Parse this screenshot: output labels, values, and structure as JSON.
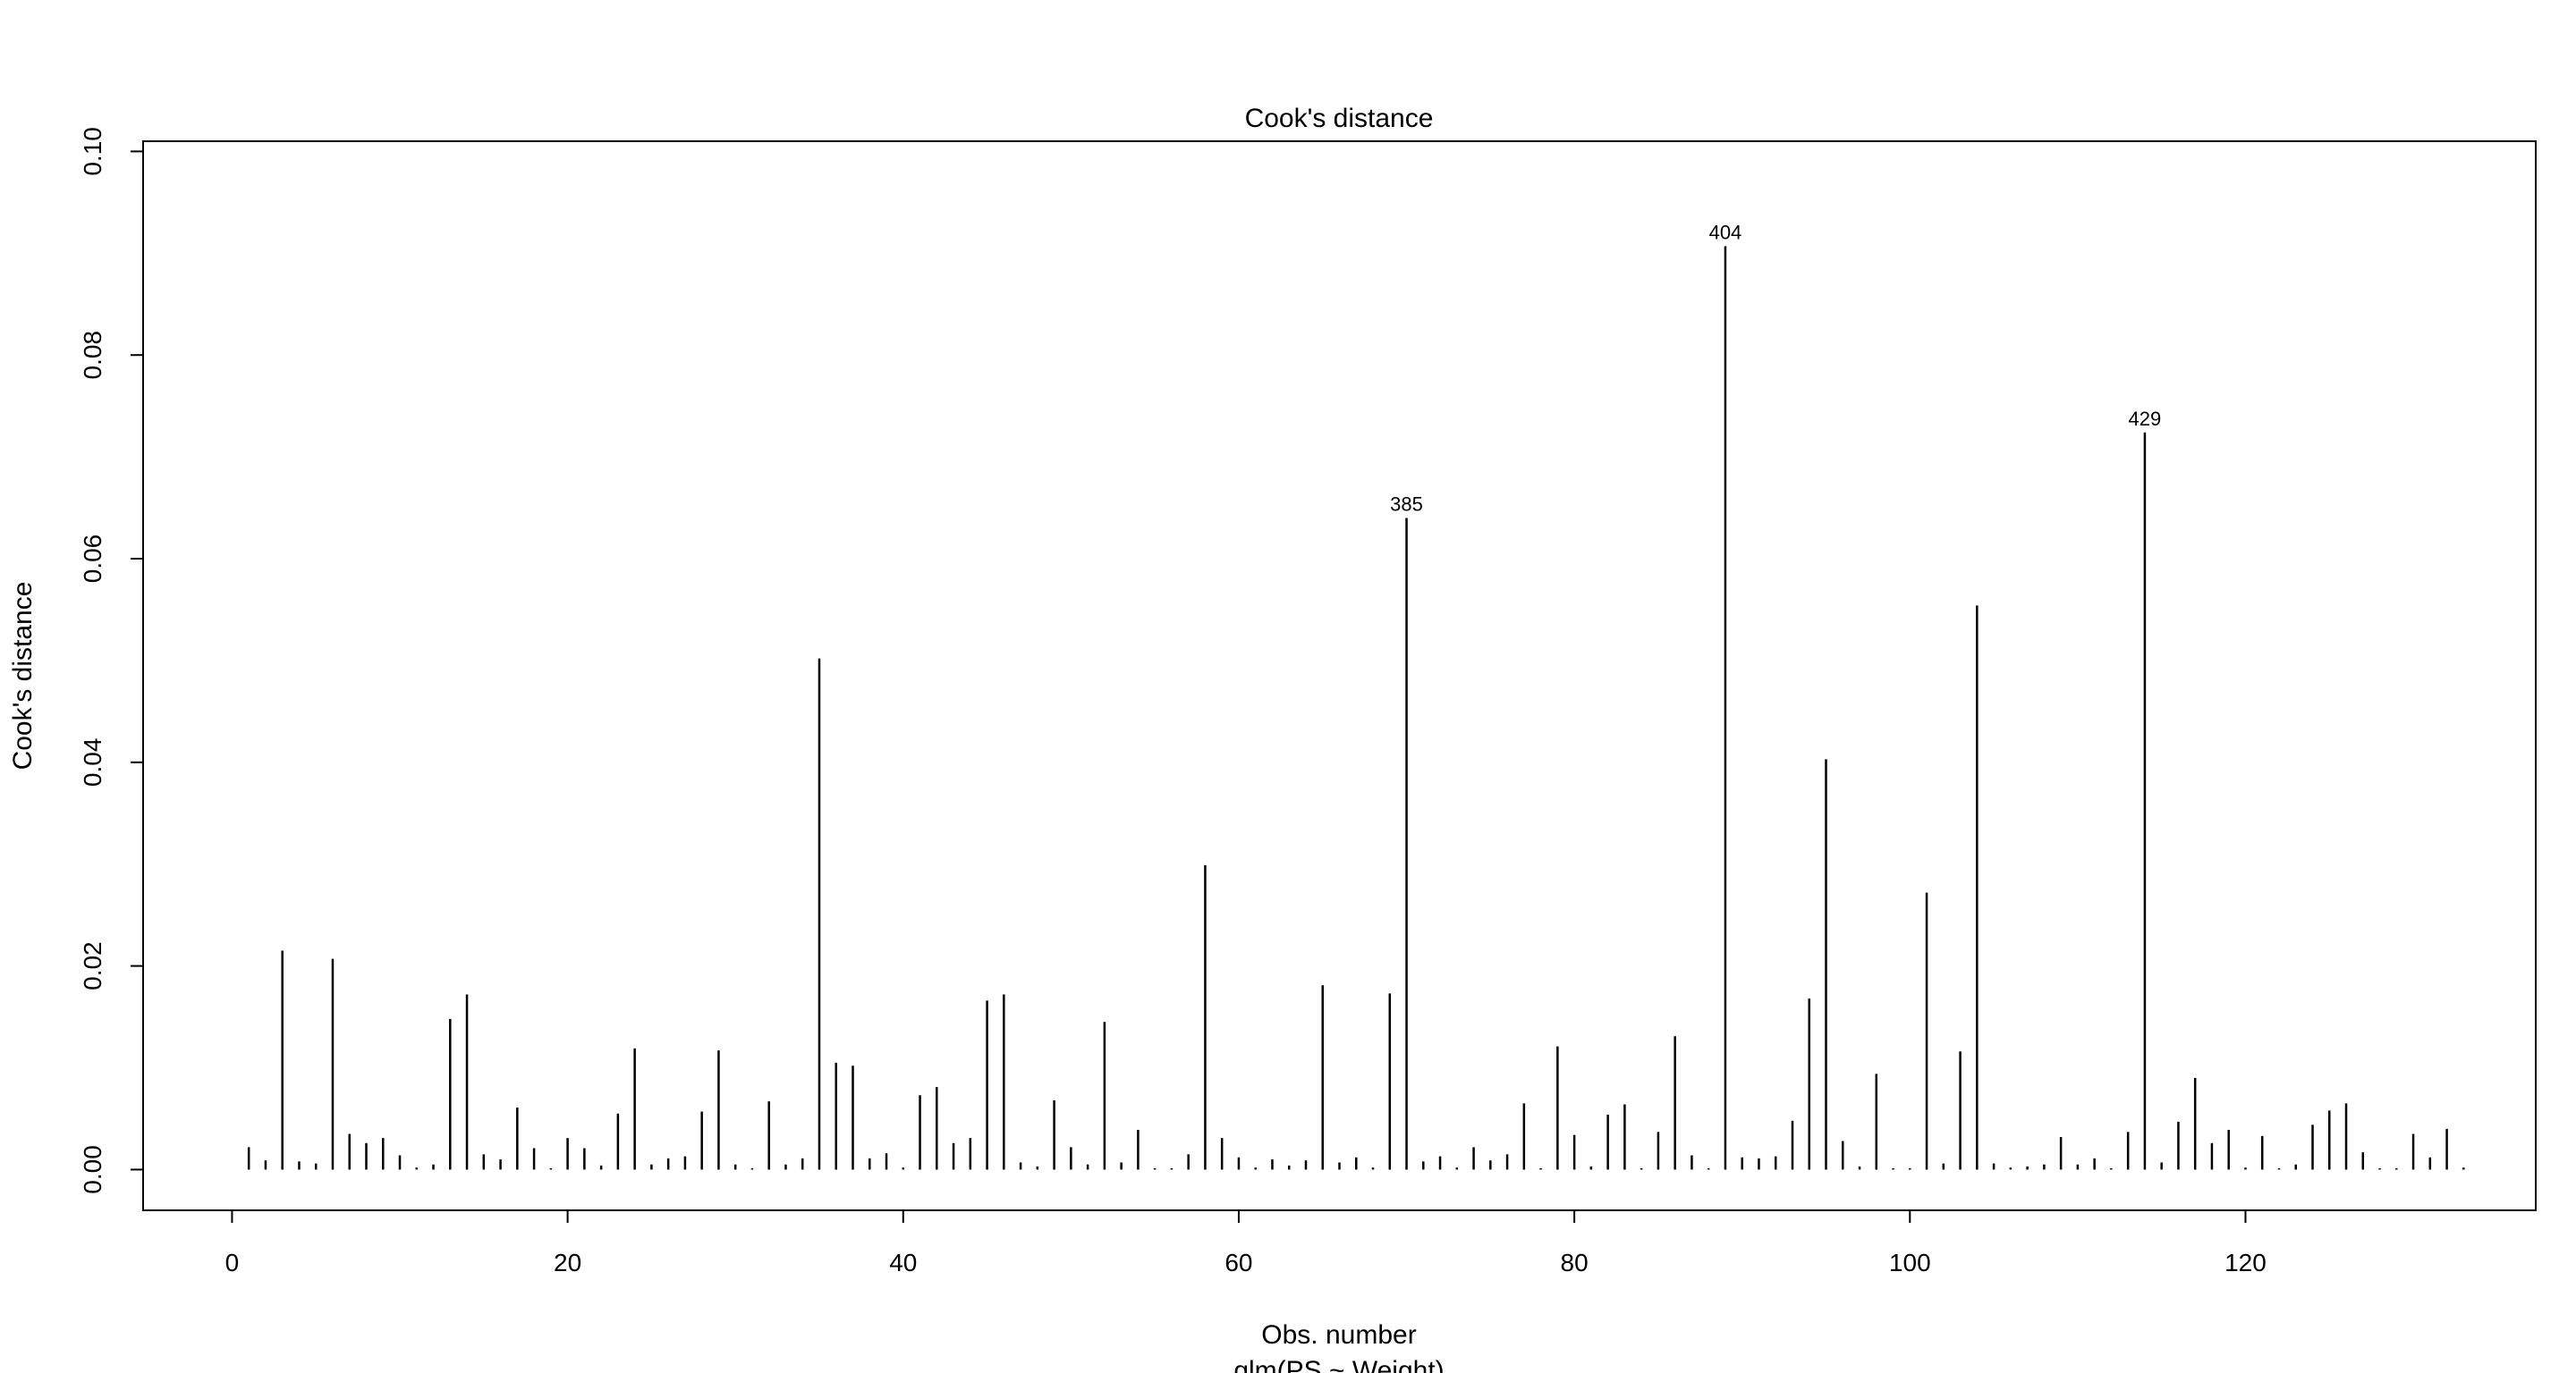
{
  "chart_data": {
    "type": "bar",
    "title": "Cook's distance",
    "xlabel": "Obs. number",
    "sublabel": "glm(PS ~ Weight)",
    "ylabel": "Cook's distance",
    "xlim": [
      -5.3,
      137.3
    ],
    "ylim": [
      -0.004,
      0.101
    ],
    "xticks": [
      0,
      20,
      40,
      60,
      80,
      100,
      120
    ],
    "yticks": [
      0.0,
      0.02,
      0.04,
      0.06,
      0.08,
      0.1
    ],
    "ytick_labels": [
      "0.00",
      "0.02",
      "0.04",
      "0.06",
      "0.08",
      "0.10"
    ],
    "grid": false,
    "legend": "none",
    "x": [
      1,
      2,
      3,
      4,
      5,
      6,
      7,
      8,
      9,
      10,
      11,
      12,
      13,
      14,
      15,
      16,
      17,
      18,
      19,
      20,
      21,
      22,
      23,
      24,
      25,
      26,
      27,
      28,
      29,
      30,
      31,
      32,
      33,
      34,
      35,
      36,
      37,
      38,
      39,
      40,
      41,
      42,
      43,
      44,
      45,
      46,
      47,
      48,
      49,
      50,
      51,
      52,
      53,
      54,
      55,
      56,
      57,
      58,
      59,
      60,
      61,
      62,
      63,
      64,
      65,
      66,
      67,
      68,
      69,
      70,
      71,
      72,
      73,
      74,
      75,
      76,
      77,
      78,
      79,
      80,
      81,
      82,
      83,
      84,
      85,
      86,
      87,
      88,
      89,
      90,
      91,
      92,
      93,
      94,
      95,
      96,
      97,
      98,
      99,
      100,
      101,
      102,
      103,
      104,
      105,
      106,
      107,
      108,
      109,
      110,
      111,
      112,
      113,
      114,
      115,
      116,
      117,
      118,
      119,
      120,
      121,
      122,
      123,
      124,
      125,
      126,
      127,
      128,
      129,
      130,
      131,
      132,
      133
    ],
    "values": [
      0.0022,
      0.0009,
      0.0215,
      0.0008,
      0.0006,
      0.0207,
      0.0035,
      0.0026,
      0.0031,
      0.0014,
      0.0002,
      0.0005,
      0.0148,
      0.0172,
      0.0015,
      0.001,
      0.0061,
      0.0021,
      0.0001,
      0.0031,
      0.0021,
      0.0004,
      0.0055,
      0.0119,
      0.0005,
      0.0011,
      0.0013,
      0.0057,
      0.0117,
      0.0005,
      0.0001,
      0.0067,
      0.0005,
      0.0011,
      0.0502,
      0.0105,
      0.0102,
      0.0011,
      0.0016,
      0.0002,
      0.0073,
      0.0081,
      0.0026,
      0.0031,
      0.0166,
      0.0172,
      0.0007,
      0.0003,
      0.0068,
      0.0022,
      0.0005,
      0.0145,
      0.0007,
      0.0039,
      0.0001,
      0.0001,
      0.0015,
      0.0299,
      0.0031,
      0.0012,
      0.0002,
      0.001,
      0.0004,
      0.0009,
      0.0181,
      0.0007,
      0.0012,
      0.0002,
      0.0173,
      0.064,
      0.0008,
      0.0013,
      0.0002,
      0.0022,
      0.0009,
      0.0015,
      0.0065,
      0.0001,
      0.0121,
      0.0034,
      0.0003,
      0.0054,
      0.0064,
      0.0001,
      0.0037,
      0.0131,
      0.0014,
      0.0001,
      0.0907,
      0.0012,
      0.0011,
      0.0013,
      0.0048,
      0.0168,
      0.0403,
      0.0028,
      0.0003,
      0.0094,
      0.0001,
      0.0001,
      0.0272,
      0.0006,
      0.0116,
      0.0554,
      0.0006,
      0.0002,
      0.0003,
      0.0005,
      0.0032,
      0.0005,
      0.0011,
      0.0001,
      0.0037,
      0.0724,
      0.0007,
      0.0047,
      0.009,
      0.0026,
      0.0039,
      0.0002,
      0.0033,
      0.0001,
      0.0005,
      0.0044,
      0.0058,
      0.0065,
      0.0017,
      0.0001,
      0.0001,
      0.0035,
      0.0012,
      0.004,
      0.0002
    ],
    "annotations": [
      {
        "x": 70,
        "y": 0.064,
        "text": "385"
      },
      {
        "x": 89,
        "y": 0.0907,
        "text": "404"
      },
      {
        "x": 114,
        "y": 0.0724,
        "text": "429"
      }
    ]
  }
}
